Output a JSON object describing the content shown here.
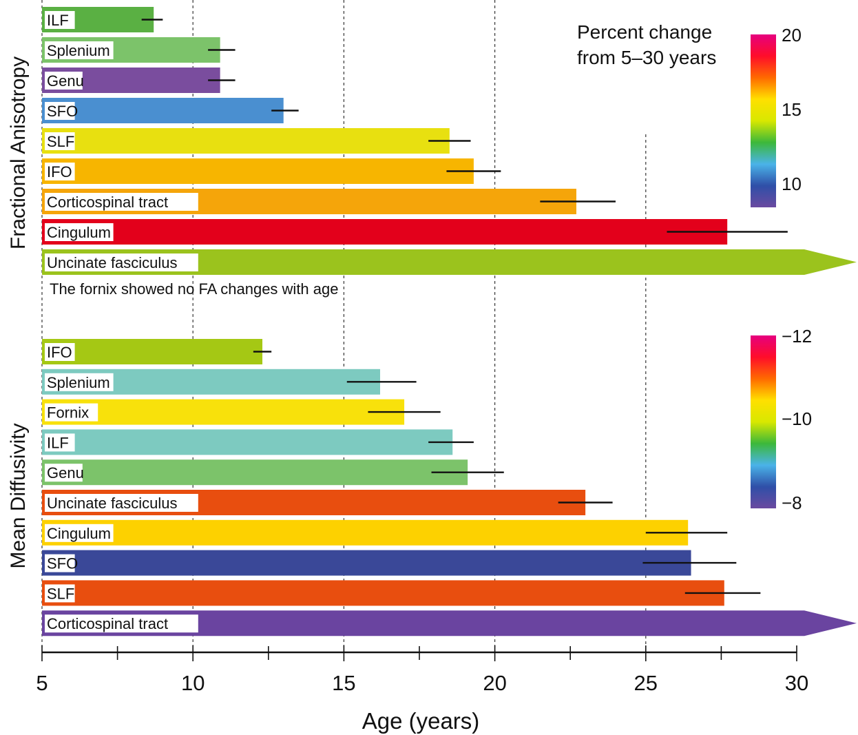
{
  "chart_data": {
    "type": "bar",
    "orientation": "horizontal",
    "xlabel": "Age (years)",
    "xlim": [
      5,
      30
    ],
    "ticks": [
      5,
      10,
      15,
      20,
      25,
      30
    ],
    "ticklabels": [
      "5",
      "10",
      "15",
      "20",
      "25",
      "30"
    ],
    "colorbar_title": [
      "Percent change",
      "from 5–30 years"
    ],
    "panels": [
      {
        "name": "Fractional Anisotropy",
        "ylabel": "Fractional Anisotropy",
        "note": "The fornix showed no FA changes with age",
        "colorbar": {
          "ticks": [
            "20",
            "15",
            "10"
          ],
          "colors": [
            "#e6007e",
            "#ff0d2a",
            "#ff6a00",
            "#ffe000",
            "#d8e800",
            "#3cb83a",
            "#4ab3e8",
            "#2f4fa8",
            "#6a4aa0"
          ]
        },
        "series": [
          {
            "label": "ILF",
            "value": 8.7,
            "err": [
              8.3,
              9.0
            ],
            "color": "#5ab043"
          },
          {
            "label": "Splenium",
            "value": 10.9,
            "err": [
              10.5,
              11.4
            ],
            "color": "#7cc36a"
          },
          {
            "label": "Genu",
            "value": 10.9,
            "err": [
              10.5,
              11.4
            ],
            "color": "#7a4d9e"
          },
          {
            "label": "SFO",
            "value": 13.0,
            "err": [
              12.6,
              13.5
            ],
            "color": "#4a8fd0"
          },
          {
            "label": "SLF",
            "value": 18.5,
            "err": [
              17.8,
              19.2
            ],
            "color": "#e8e010"
          },
          {
            "label": "IFO",
            "value": 19.3,
            "err": [
              18.4,
              20.2
            ],
            "color": "#f7b500"
          },
          {
            "label": "Corticospinal tract",
            "value": 22.7,
            "err": [
              21.5,
              24.0
            ],
            "color": "#f5a50a"
          },
          {
            "label": "Cingulum",
            "value": 27.7,
            "err": [
              25.7,
              29.7
            ],
            "color": "#e3001b"
          },
          {
            "label": "Uncinate fasciculus",
            "value": 30,
            "arrow": true,
            "color": "#9bc31d"
          }
        ]
      },
      {
        "name": "Mean Diffusivity",
        "ylabel": "Mean Diffusivity",
        "colorbar": {
          "ticks": [
            "−12",
            "−10",
            "−8"
          ],
          "colors": [
            "#e6007e",
            "#ff0d2a",
            "#ff6a00",
            "#ffe000",
            "#d8e800",
            "#3cb83a",
            "#4ab3e8",
            "#2f4fa8",
            "#6a4aa0"
          ]
        },
        "series": [
          {
            "label": "IFO",
            "value": 12.3,
            "err": [
              12.0,
              12.6
            ],
            "color": "#a5c814"
          },
          {
            "label": "Splenium",
            "value": 16.2,
            "err": [
              15.1,
              17.4
            ],
            "color": "#7dcac0"
          },
          {
            "label": "Fornix",
            "value": 17.0,
            "err": [
              15.8,
              18.2
            ],
            "color": "#f8e10b"
          },
          {
            "label": "ILF",
            "value": 18.6,
            "err": [
              17.8,
              19.3
            ],
            "color": "#7dcac0"
          },
          {
            "label": "Genu",
            "value": 19.1,
            "err": [
              17.9,
              20.3
            ],
            "color": "#7cc36a"
          },
          {
            "label": "Uncinate fasciculus",
            "value": 23.0,
            "err": [
              22.1,
              23.9
            ],
            "color": "#e84e0f"
          },
          {
            "label": "Cingulum",
            "value": 26.4,
            "err": [
              25.0,
              27.7
            ],
            "color": "#fdd100"
          },
          {
            "label": "SFO",
            "value": 26.5,
            "err": [
              24.9,
              28.0
            ],
            "color": "#3a4898"
          },
          {
            "label": "SLF",
            "value": 27.6,
            "err": [
              26.3,
              28.8
            ],
            "color": "#e84e0f"
          },
          {
            "label": "Corticospinal tract",
            "value": 30,
            "arrow": true,
            "color": "#6a44a0"
          }
        ]
      }
    ]
  }
}
